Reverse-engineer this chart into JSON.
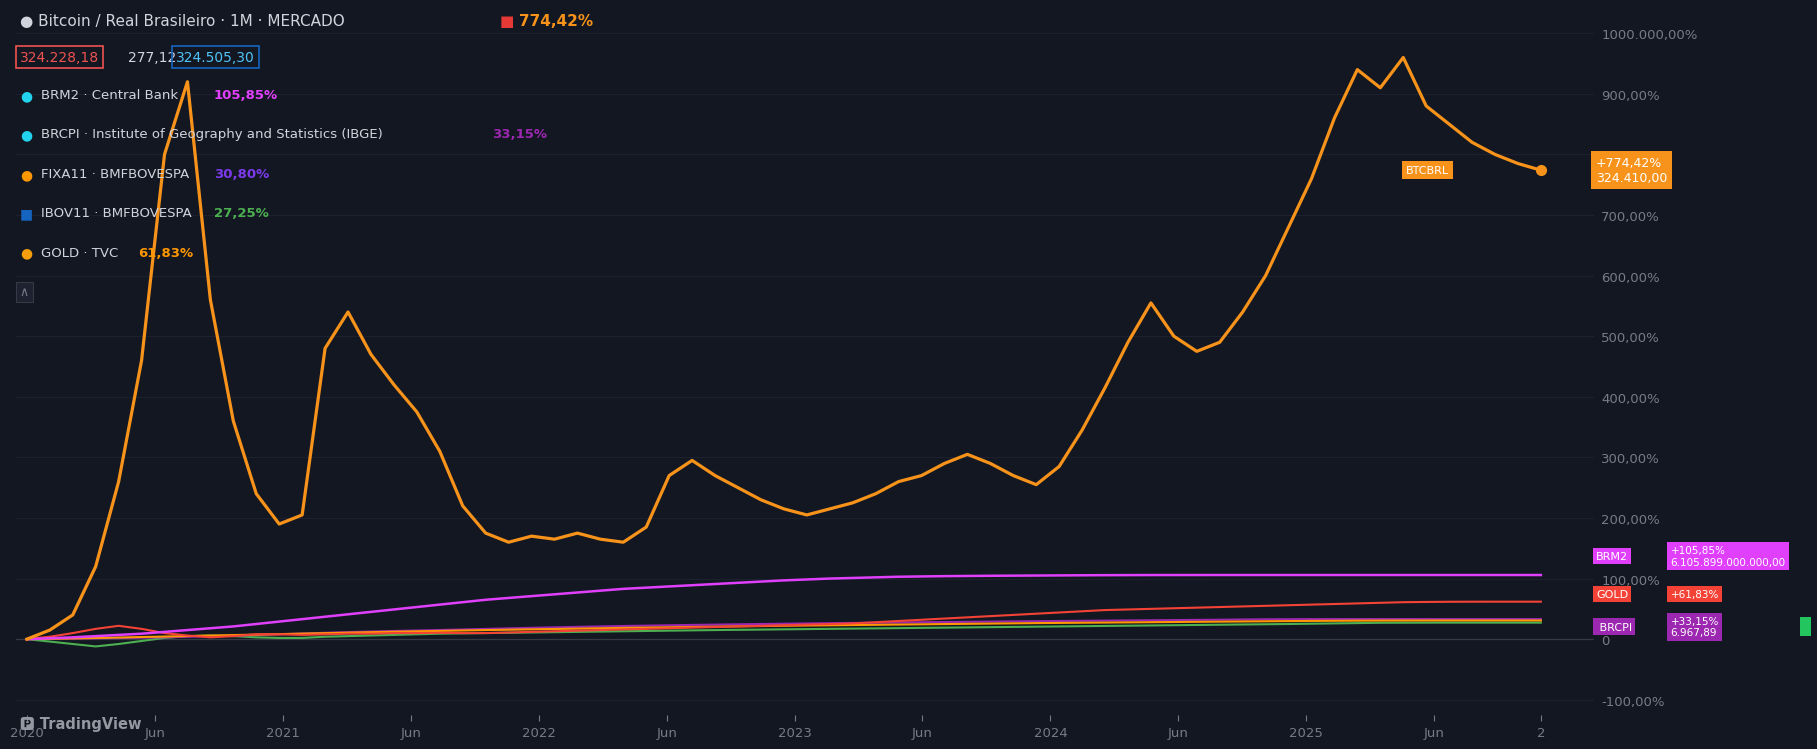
{
  "bg": "#131722",
  "title_color": "#d1d4dc",
  "axis_color": "#787b86",
  "grid_color": "#1e2230",
  "btc_color": "#f7931a",
  "brm2_color": "#e040fb",
  "brcpi_color": "#9c27b0",
  "fixa11_color": "#ff9800",
  "ibov11_color": "#4caf50",
  "gold_color": "#f44336",
  "zero_line": "#363a45",
  "ylim": [
    -125,
    1040
  ],
  "ytick_vals": [
    -100,
    0,
    100,
    200,
    300,
    400,
    500,
    600,
    700,
    800,
    900,
    1000
  ],
  "x_tick_pos": [
    0,
    6,
    12,
    18,
    24,
    30,
    36,
    42,
    48,
    54,
    60,
    66,
    71
  ],
  "x_tick_lbl": [
    "2020",
    "Jun",
    "2021",
    "Jun",
    "2022",
    "Jun",
    "2023",
    "Jun",
    "2024",
    "Jun",
    "2025",
    "Jun",
    "2"
  ],
  "btc": [
    0,
    15,
    40,
    120,
    260,
    460,
    800,
    920,
    560,
    360,
    240,
    190,
    205,
    480,
    540,
    470,
    420,
    375,
    310,
    220,
    175,
    160,
    170,
    165,
    175,
    165,
    160,
    185,
    270,
    295,
    270,
    250,
    230,
    215,
    205,
    215,
    225,
    240,
    260,
    270,
    290,
    305,
    290,
    270,
    255,
    285,
    345,
    415,
    490,
    555,
    500,
    475,
    490,
    540,
    600,
    680,
    760,
    860,
    940,
    910,
    960,
    880,
    850,
    820,
    800,
    785,
    774
  ],
  "brm2": [
    0,
    1.5,
    3,
    5,
    7,
    9,
    12,
    15,
    18,
    21,
    25,
    29,
    33,
    37,
    41,
    45,
    49,
    53,
    57,
    61,
    65,
    68,
    71,
    74,
    77,
    80,
    83,
    85,
    87,
    89,
    91,
    93,
    95,
    97,
    98.5,
    100,
    101,
    102,
    103,
    103.5,
    104,
    104.3,
    104.6,
    104.8,
    105,
    105.2,
    105.4,
    105.6,
    105.7,
    105.8,
    105.82,
    105.84,
    105.85,
    105.85,
    105.85,
    105.85,
    105.85,
    105.85,
    105.85,
    105.85,
    105.85,
    105.85,
    105.85,
    105.85,
    105.85,
    105.85,
    105.85
  ],
  "brcpi": [
    0,
    0.4,
    0.8,
    1.3,
    1.8,
    2.4,
    3.1,
    3.9,
    4.8,
    5.8,
    6.9,
    8.1,
    9.3,
    10.5,
    11.6,
    12.6,
    13.5,
    14.3,
    15.1,
    16,
    16.9,
    17.8,
    18.7,
    19.5,
    20.3,
    21,
    21.7,
    22.3,
    22.9,
    23.5,
    24,
    24.5,
    25,
    25.5,
    25.9,
    26.3,
    26.7,
    27.1,
    27.5,
    27.9,
    28.3,
    28.6,
    29,
    29.4,
    29.7,
    30,
    30.3,
    30.6,
    30.9,
    31.2,
    31.5,
    31.8,
    32.1,
    32.5,
    32.8,
    33.0,
    33.1,
    33.15,
    33.15,
    33.15,
    33.15,
    33.15,
    33.15,
    33.15,
    33.15,
    33.15,
    33.15
  ],
  "fixa11": [
    0,
    0.6,
    1.2,
    1.9,
    2.7,
    3.5,
    4.3,
    5.1,
    5.9,
    6.7,
    7.5,
    8.3,
    9.1,
    9.9,
    10.7,
    11.5,
    12.2,
    12.9,
    13.6,
    14.3,
    15,
    15.6,
    16.2,
    16.8,
    17.4,
    18,
    18.6,
    19.1,
    19.6,
    20.1,
    20.6,
    21.1,
    21.6,
    22.1,
    22.5,
    22.9,
    23.3,
    23.7,
    24.1,
    24.5,
    24.9,
    25.3,
    25.7,
    26.1,
    26.5,
    26.8,
    27.1,
    27.4,
    27.7,
    28,
    28.3,
    28.6,
    28.9,
    29.2,
    29.5,
    29.8,
    30.1,
    30.3,
    30.5,
    30.65,
    30.75,
    30.8,
    30.8,
    30.8,
    30.8,
    30.8,
    30.8
  ],
  "ibov11": [
    0,
    -4,
    -8,
    -12,
    -8,
    -3,
    2,
    5,
    6,
    5,
    3,
    2,
    2,
    4,
    5,
    6,
    7,
    8,
    9,
    9.5,
    10,
    10.5,
    11,
    11.5,
    12,
    12.5,
    13,
    13.5,
    14,
    14.5,
    15,
    15.4,
    15.8,
    16.2,
    16.6,
    17,
    17.4,
    17.8,
    18.2,
    18.6,
    19,
    19.4,
    19.8,
    20.2,
    20.6,
    21,
    21.4,
    21.8,
    22.2,
    22.6,
    23,
    23.4,
    23.8,
    24.2,
    24.6,
    25,
    25.5,
    26,
    26.5,
    27,
    27.1,
    27.2,
    27.25,
    27.25,
    27.25,
    27.25,
    27.25
  ],
  "gold": [
    0,
    4,
    10,
    17,
    22,
    17,
    10,
    6,
    3,
    5,
    8,
    8,
    7,
    8,
    9,
    9,
    10,
    10,
    10.5,
    10,
    10,
    11,
    12,
    13,
    14,
    15,
    16,
    17,
    18,
    19,
    20,
    21,
    22,
    23,
    24,
    25,
    26,
    28,
    30,
    32,
    34,
    36,
    38,
    40,
    42,
    44,
    46,
    48,
    49,
    50,
    51,
    52,
    53,
    54,
    55,
    56,
    57,
    58,
    59,
    60,
    61,
    61.4,
    61.7,
    61.8,
    61.83,
    61.83,
    61.83
  ]
}
